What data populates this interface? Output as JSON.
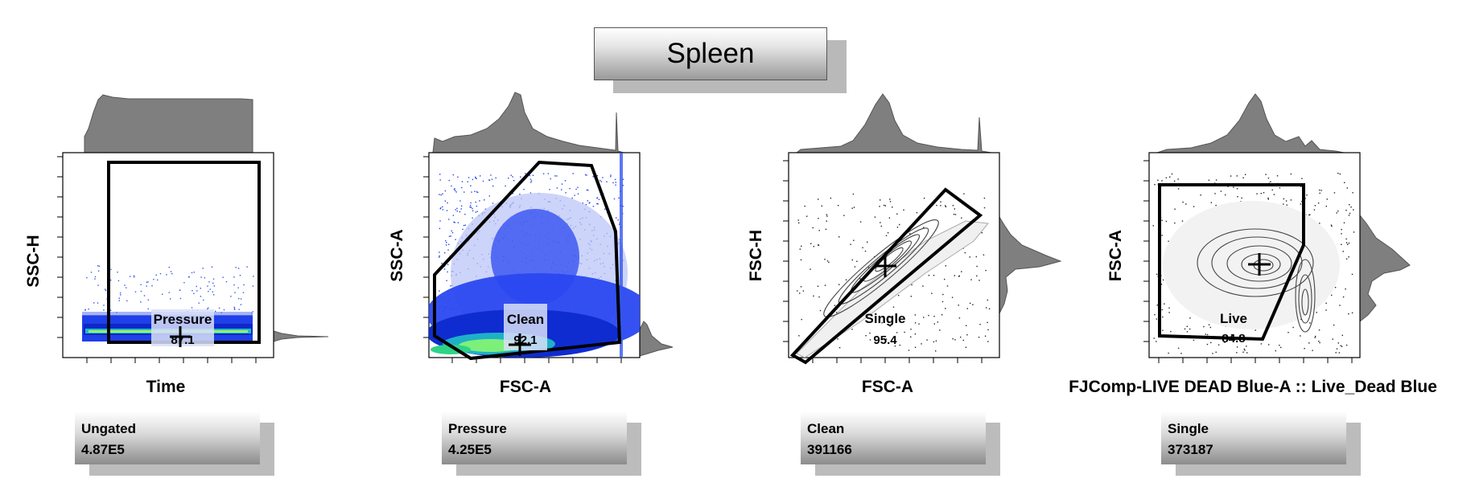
{
  "header": {
    "title": "Spleen"
  },
  "chart_data": [
    {
      "type": "scatter",
      "xlabel": "Time",
      "ylabel": "SSC-H",
      "gate": {
        "name": "Pressure",
        "percent": "87.1"
      },
      "parent": {
        "name": "Ungated",
        "count": "4.87E5"
      }
    },
    {
      "type": "scatter",
      "xlabel": "FSC-A",
      "ylabel": "SSC-A",
      "gate": {
        "name": "Clean",
        "percent": "92.1"
      },
      "parent": {
        "name": "Pressure",
        "count": "4.25E5"
      }
    },
    {
      "type": "scatter",
      "xlabel": "FSC-A",
      "ylabel": "FSC-H",
      "gate": {
        "name": "Single",
        "percent": "95.4"
      },
      "parent": {
        "name": "Clean",
        "count": "391166"
      }
    },
    {
      "type": "scatter",
      "xlabel": "FJComp-LIVE DEAD Blue-A :: Live_Dead Blue",
      "ylabel": "FSC-A",
      "gate": {
        "name": "Live",
        "percent": "84.8"
      },
      "parent": {
        "name": "Single",
        "count": "373187"
      }
    }
  ]
}
